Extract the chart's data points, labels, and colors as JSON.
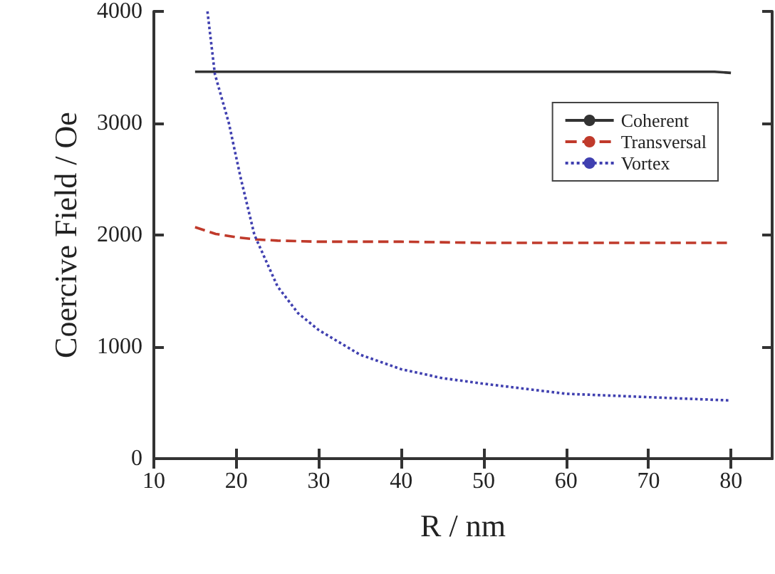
{
  "chart_data": {
    "type": "line",
    "xlabel": "R / nm",
    "ylabel": "Coercive Field / Oe",
    "xlim": [
      10,
      85
    ],
    "xticks": [
      10,
      20,
      30,
      40,
      50,
      60,
      70,
      80
    ],
    "ylim": [
      0,
      4000
    ],
    "yticks": [
      0,
      1000,
      2000,
      3000,
      4000
    ],
    "grid": false,
    "legend": "top right",
    "marker": "none",
    "series": [
      {
        "name": "Coherent",
        "color": "#333333",
        "line_style": "solid",
        "x": [
          15,
          50,
          78,
          80
        ],
        "values": [
          3460,
          3460,
          3460,
          3450
        ]
      },
      {
        "name": "Transversal",
        "color": "#c03a2b",
        "line_style": "dashed",
        "x": [
          15,
          17.5,
          20,
          22.5,
          25,
          30,
          40,
          50,
          60,
          70,
          80
        ],
        "values": [
          2070,
          2010,
          1980,
          1960,
          1950,
          1940,
          1940,
          1930,
          1930,
          1930,
          1930
        ]
      },
      {
        "name": "Vortex",
        "color": "#4040b0",
        "line_style": "dotted",
        "x": [
          16.5,
          17.4,
          19.1,
          20.5,
          22.2,
          25,
          27.5,
          30,
          35,
          40,
          45,
          50,
          60,
          70,
          80
        ],
        "values": [
          4000,
          3440,
          3000,
          2520,
          2000,
          1540,
          1300,
          1150,
          930,
          800,
          720,
          670,
          580,
          550,
          520
        ]
      }
    ]
  }
}
